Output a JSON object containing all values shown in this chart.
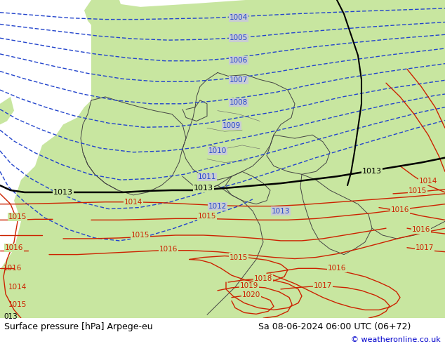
{
  "title_left": "Surface pressure [hPa] Arpege-eu",
  "title_right": "Sa 08-06-2024 06:00 UTC (06+72)",
  "copyright": "© weatheronline.co.uk",
  "sea_color": "#c8ccd4",
  "land_color": "#c8e6a0",
  "blue_color": "#2244cc",
  "red_color": "#cc2200",
  "black_color": "#000000",
  "border_color": "#444444",
  "bottom_bar_color": "#ffffff",
  "text_color": "#000000",
  "fig_width": 6.34,
  "fig_height": 4.9,
  "font_size_title": 9,
  "font_size_copyright": 8
}
